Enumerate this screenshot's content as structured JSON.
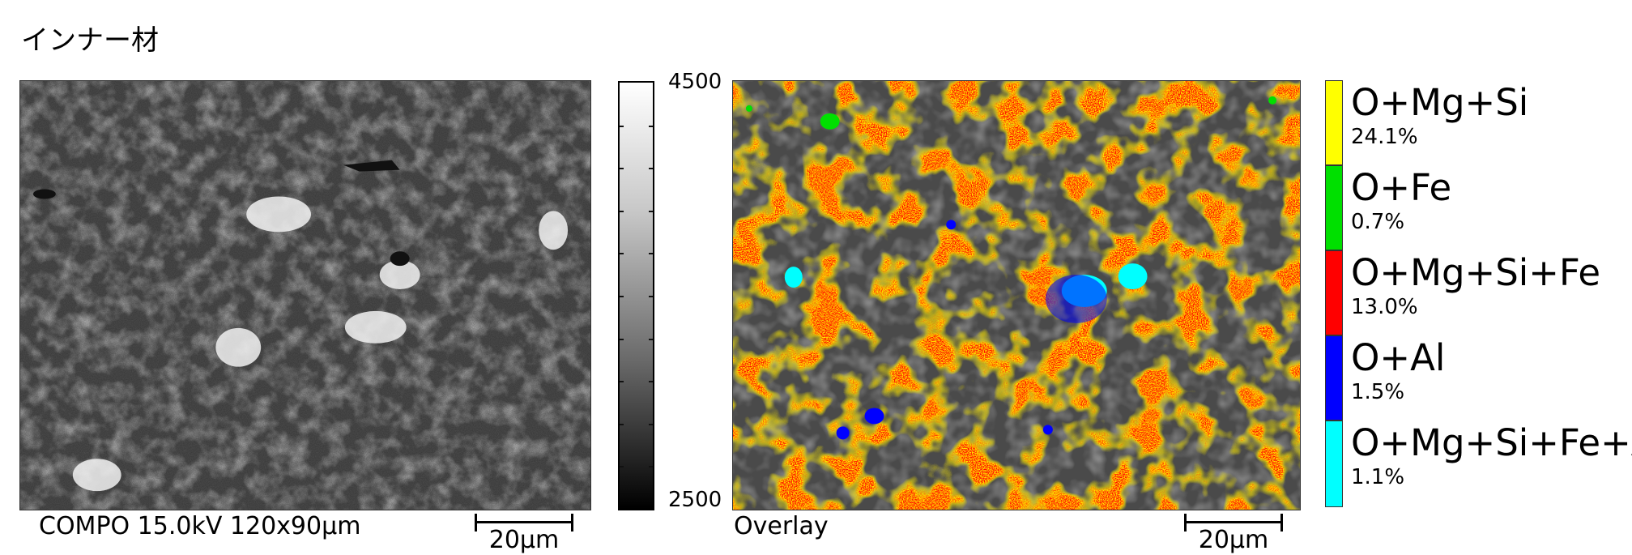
{
  "title": "インナー材",
  "sem": {
    "caption": "COMPO 15.0kV 120x90μm",
    "scalebar_label": "20μm"
  },
  "gray_scale": {
    "max_label": "4500",
    "min_label": "2500"
  },
  "overlay": {
    "caption": "Overlay",
    "scalebar_label": "20μm"
  },
  "legend": [
    {
      "name": "O+Mg+Si",
      "percent": "24.1%",
      "color": "#ffff00"
    },
    {
      "name": "O+Fe",
      "percent": "0.7%",
      "color": "#00e000"
    },
    {
      "name": "O+Mg+Si+Fe",
      "percent": "13.0%",
      "color": "#ff0000"
    },
    {
      "name": "O+Al",
      "percent": "1.5%",
      "color": "#0000ff"
    },
    {
      "name": "O+Mg+Si+Fe+Al",
      "percent": "1.1%",
      "color": "#00ffff"
    }
  ]
}
